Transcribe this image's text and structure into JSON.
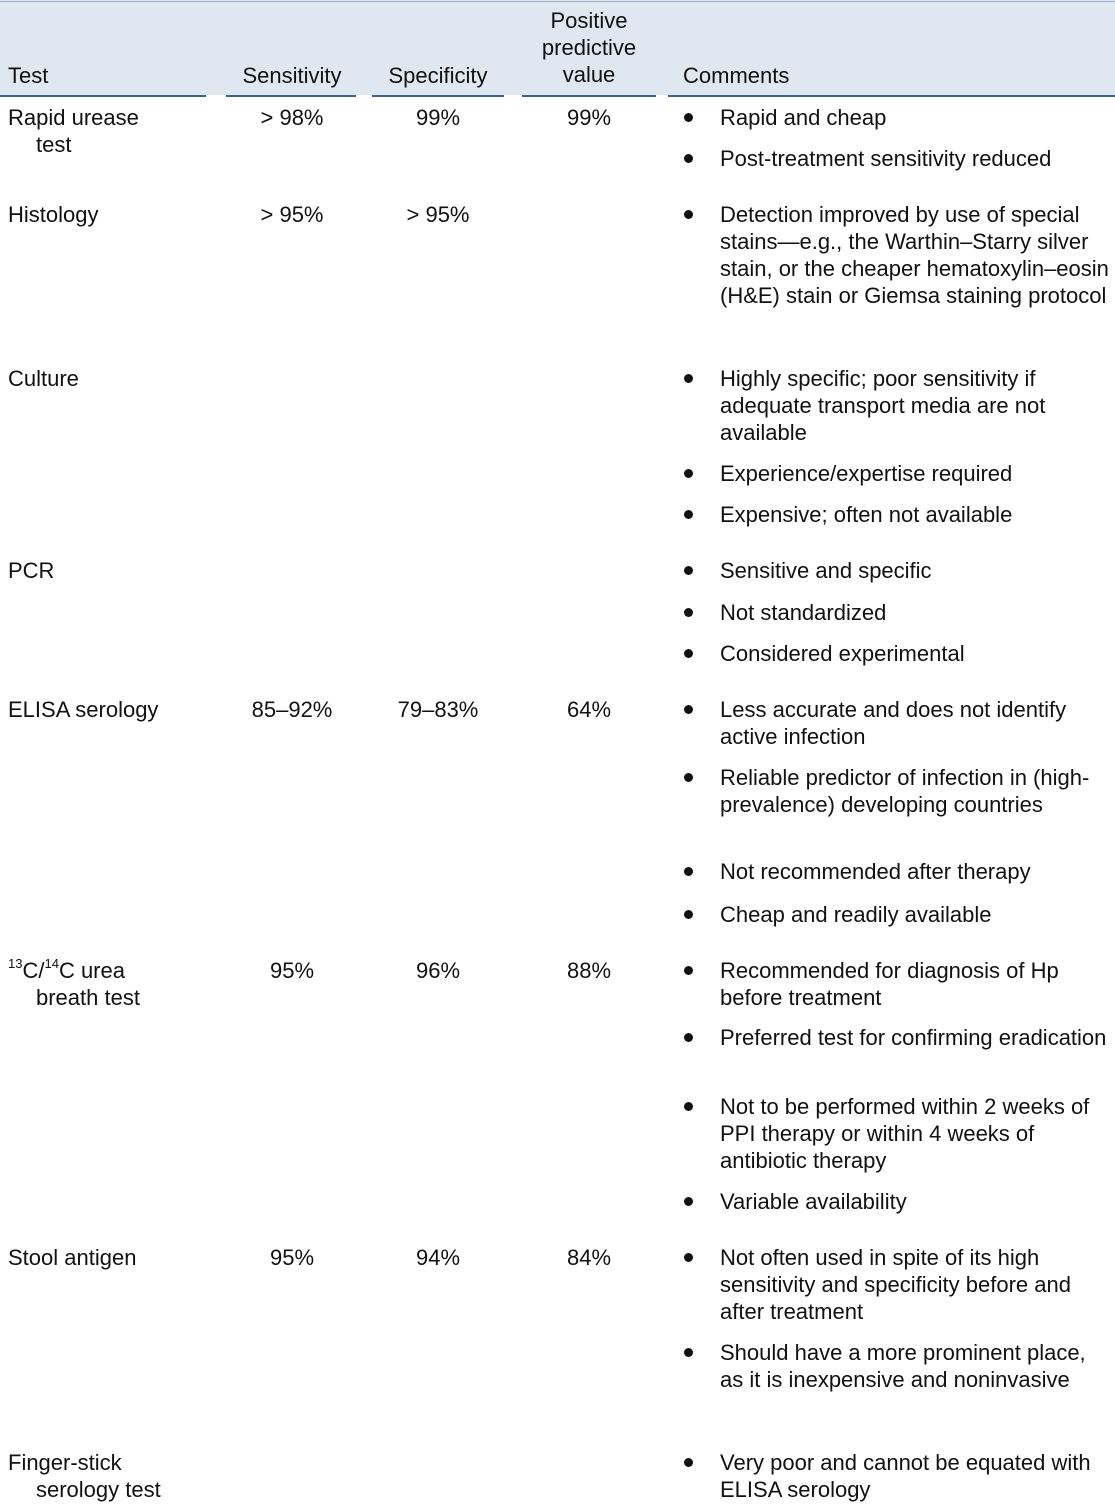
{
  "header": {
    "test": "Test",
    "sensitivity": "Sensitivity",
    "specificity": "Specificity",
    "ppv_line1": "Positive",
    "ppv_line2": "predictive",
    "ppv_line3": "value",
    "comments": "Comments"
  },
  "rows": [
    {
      "test_l1": "Rapid urease",
      "test_l2": "test",
      "sensitivity": "> 98%",
      "specificity": "99%",
      "ppv": "99%",
      "comments": [
        "Rapid and cheap",
        "Post-treatment sensitivity reduced"
      ]
    },
    {
      "test_l1": "Histology",
      "sensitivity": "> 95%",
      "specificity": "> 95%",
      "ppv": "",
      "comments": [
        "Detection improved by use of special stains—e.g., the Warthin–Starry silver stain, or the cheaper hematoxylin–eosin (H&E) stain or Giemsa staining protocol"
      ]
    },
    {
      "test_l1": "Culture",
      "sensitivity": "",
      "specificity": "",
      "ppv": "",
      "comments": [
        "Highly specific; poor sensitivity if adequate transport media are not available",
        "Experience/expertise required",
        "Expensive; often not available"
      ]
    },
    {
      "test_l1": "PCR",
      "sensitivity": "",
      "specificity": "",
      "ppv": "",
      "comments": [
        "Sensitive and specific",
        "Not standardized",
        "Considered experimental"
      ]
    },
    {
      "test_l1": "ELISA serology",
      "sensitivity": "85–92%",
      "specificity": "79–83%",
      "ppv": "64%",
      "comments": [
        "Less accurate and does not identify active infection",
        "Reliable predictor of infection in (high-prevalence) developing countries",
        "Not recommended after therapy",
        "Cheap and readily available"
      ]
    },
    {
      "test_sup1": "13",
      "test_mid1": "C/",
      "test_sup2": "14",
      "test_mid2": "C urea",
      "test_l2": "breath test",
      "sensitivity": "95%",
      "specificity": "96%",
      "ppv": "88%",
      "comments": [
        "Recommended for diagnosis of Hp before treatment",
        "Preferred test for confirming eradication",
        "Not to be performed within 2 weeks of PPI therapy or within 4 weeks of antibiotic therapy",
        "Variable availability"
      ]
    },
    {
      "test_l1": "Stool antigen",
      "sensitivity": "95%",
      "specificity": "94%",
      "ppv": "84%",
      "comments": [
        "Not often used in spite of its high sensitivity and specificity before and after treatment",
        "Should have a more prominent place, as it is inexpensive and noninvasive"
      ]
    },
    {
      "test_l1": "Finger-stick",
      "test_l2": "serology test",
      "sensitivity": "",
      "specificity": "",
      "ppv": "",
      "comments": [
        "Very poor and cannot be equated with ELISA serology"
      ]
    }
  ]
}
